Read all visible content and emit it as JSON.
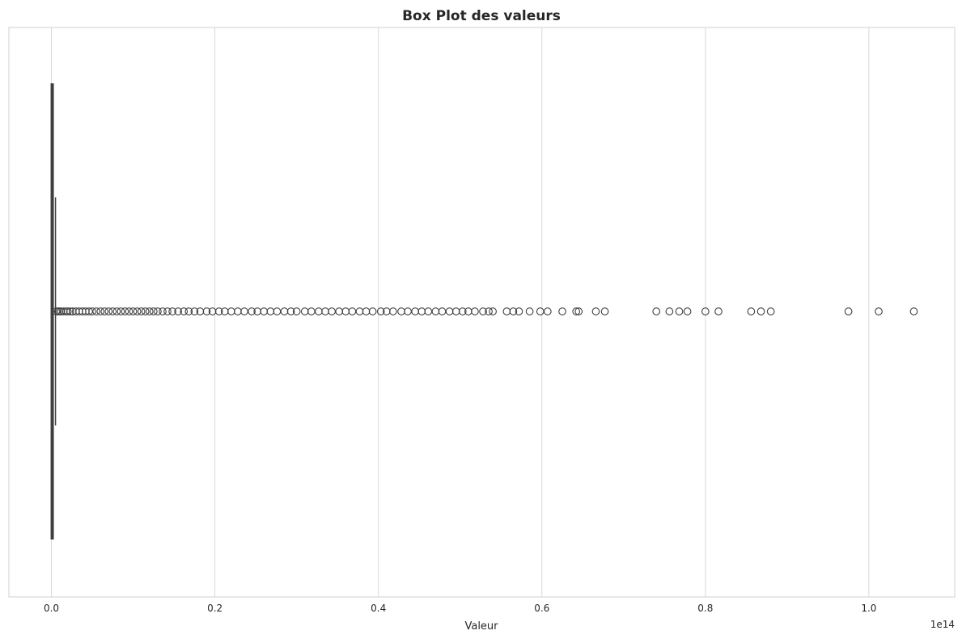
{
  "chart_data": {
    "type": "box",
    "orientation": "horizontal",
    "title": "Box Plot des valeurs",
    "xlabel": "Valeur",
    "ylabel": "",
    "xlim": [
      -0.052,
      1.105
    ],
    "x_scale_offset": "1e14",
    "x_ticks": [
      0.0,
      0.2,
      0.4,
      0.6,
      0.8,
      1.0
    ],
    "x_tick_labels": [
      "0.0",
      "0.2",
      "0.4",
      "0.6",
      "0.8",
      "1.0"
    ],
    "grid": "vertical",
    "box": {
      "q1": 0.0,
      "median": 0.0005,
      "q3": 0.002,
      "whisker_low": 0.0,
      "whisker_high": 0.005
    },
    "outliers": [
      0.006,
      0.008,
      0.01,
      0.012,
      0.015,
      0.018,
      0.02,
      0.023,
      0.026,
      0.03,
      0.034,
      0.038,
      0.042,
      0.046,
      0.05,
      0.055,
      0.06,
      0.065,
      0.07,
      0.075,
      0.08,
      0.085,
      0.09,
      0.095,
      0.1,
      0.105,
      0.11,
      0.115,
      0.12,
      0.125,
      0.13,
      0.136,
      0.142,
      0.148,
      0.155,
      0.162,
      0.168,
      0.175,
      0.182,
      0.19,
      0.197,
      0.205,
      0.212,
      0.22,
      0.228,
      0.236,
      0.245,
      0.252,
      0.26,
      0.268,
      0.276,
      0.285,
      0.293,
      0.3,
      0.31,
      0.318,
      0.327,
      0.335,
      0.343,
      0.352,
      0.36,
      0.368,
      0.377,
      0.385,
      0.393,
      0.403,
      0.41,
      0.418,
      0.428,
      0.436,
      0.445,
      0.453,
      0.461,
      0.47,
      0.478,
      0.487,
      0.495,
      0.503,
      0.51,
      0.518,
      0.528,
      0.535,
      0.54,
      0.557,
      0.565,
      0.572,
      0.585,
      0.598,
      0.607,
      0.625,
      0.642,
      0.645,
      0.666,
      0.677,
      0.74,
      0.756,
      0.768,
      0.778,
      0.8,
      0.816,
      0.856,
      0.868,
      0.88,
      0.975,
      1.012,
      1.055
    ]
  }
}
